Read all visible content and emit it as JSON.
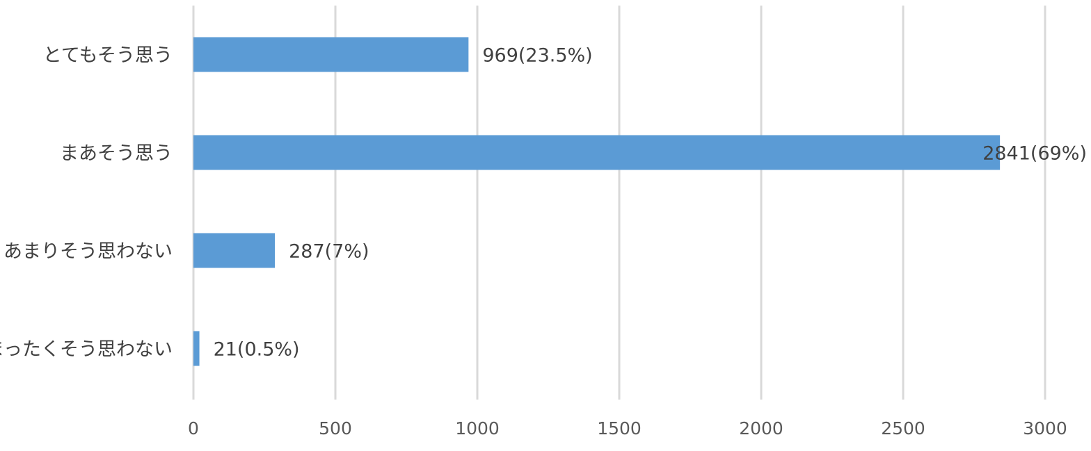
{
  "chart_data": {
    "type": "bar",
    "orientation": "horizontal",
    "title": "",
    "xlabel": "",
    "ylabel": "",
    "xlim": [
      0,
      3000
    ],
    "x_ticks": [
      0,
      500,
      1000,
      1500,
      2000,
      2500,
      3000
    ],
    "grid": "vertical",
    "legend": "none",
    "categories": [
      "とてもそう思う",
      "まあそう思う",
      "あまりそう思わない",
      "まったくそう思わない"
    ],
    "values": [
      969,
      2841,
      287,
      21
    ],
    "data_labels": [
      "969(23.5%)",
      "2841(69%)",
      "287(7%)",
      "21(0.5%)"
    ],
    "colors": {
      "bar": "#5B9BD5",
      "grid": "#D9D9D9",
      "text": "#404040",
      "tick_text": "#595959"
    }
  }
}
